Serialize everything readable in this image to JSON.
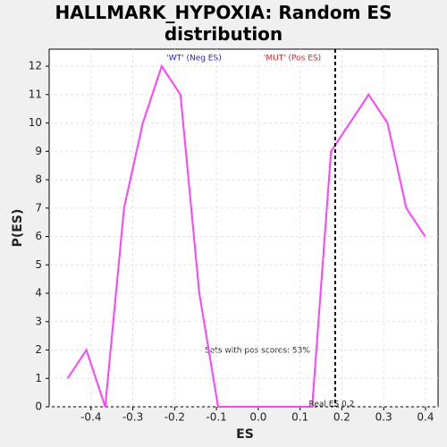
{
  "chart_data": {
    "type": "line",
    "title": "HALLMARK_HYPOXIA: Random ES distribution",
    "x_label": "ES",
    "y_label": "P(ES)",
    "x": [
      -0.456,
      -0.411,
      -0.366,
      -0.321,
      -0.276,
      -0.231,
      -0.186,
      -0.141,
      -0.096,
      -0.051,
      -0.006,
      0.039,
      0.084,
      0.129,
      0.174,
      0.219,
      0.264,
      0.309,
      0.354,
      0.399
    ],
    "series": [
      {
        "name": "P(ES)",
        "color": "#ff40ff",
        "values": [
          1,
          2,
          0,
          7,
          10,
          12,
          11,
          4,
          0,
          0,
          0,
          0,
          0,
          0,
          9,
          10,
          11,
          10,
          7,
          6
        ]
      }
    ],
    "xlim": [
      -0.5,
      0.43
    ],
    "ylim": [
      0,
      12.6
    ],
    "xticks": [
      -0.4,
      -0.3,
      -0.2,
      -0.1,
      {
        "value": 0,
        "label": "0.0"
      },
      0.1,
      0.2,
      0.3,
      0.4
    ],
    "yticks": [
      0,
      1,
      2,
      3,
      4,
      5,
      6,
      7,
      8,
      9,
      10,
      11,
      12
    ],
    "grid": true,
    "es_line": {
      "value": 0.184,
      "label": "Real ES 0.2"
    },
    "neg_label": "'WT' (Neg ES)",
    "pos_label": "'MUT' (Pos ES)",
    "annotation": "Sets with pos scores: 53%"
  }
}
